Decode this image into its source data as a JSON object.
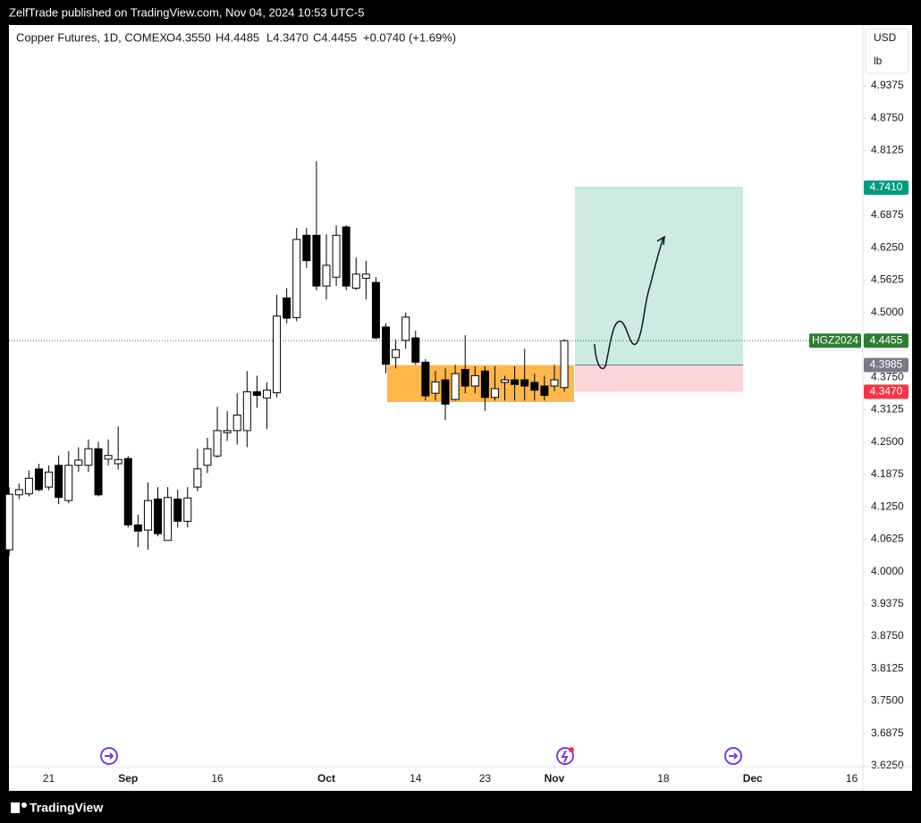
{
  "header": {
    "published": "ZelfTrade published on TradingView.com, Nov 04, 2024 10:53 UTC-5",
    "brand": "TradingView"
  },
  "chart_data": {
    "type": "candlestick",
    "title": "Copper Futures, 1D, COMEX",
    "legend": [
      "O4.3550",
      "H4.4485",
      "L4.3470",
      "C4.4455",
      "+0.0740 (+1.69%)"
    ],
    "currency": "USD",
    "unit": "lb",
    "x": [
      0,
      1,
      2,
      3,
      4,
      5,
      6,
      7,
      8,
      9,
      10,
      11,
      12,
      13,
      14,
      15,
      16,
      17,
      18,
      19,
      20,
      21,
      22,
      23,
      24,
      25,
      26,
      27,
      28,
      29,
      30,
      31,
      32,
      33,
      34,
      35,
      36,
      37,
      38,
      39,
      40,
      41,
      42,
      43,
      44,
      45,
      46,
      47,
      48,
      49,
      50,
      51,
      52,
      53,
      54,
      55,
      56
    ],
    "open": [
      4.042,
      4.148,
      4.15,
      4.198,
      4.163,
      4.205,
      4.137,
      4.205,
      4.205,
      4.237,
      4.217,
      4.208,
      4.218,
      4.09,
      4.08,
      4.14,
      4.06,
      4.14,
      4.097,
      4.163,
      4.205,
      4.223,
      4.268,
      4.272,
      4.272,
      4.347,
      4.335,
      4.345,
      4.528,
      4.49,
      4.649,
      4.649,
      4.551,
      4.568,
      4.665,
      4.547,
      4.566,
      4.558,
      4.472,
      4.413,
      4.446,
      4.451,
      4.404,
      4.344,
      4.37,
      4.332,
      4.39,
      4.358,
      4.387,
      4.336,
      4.365,
      4.37,
      4.37,
      4.365,
      4.358,
      4.358,
      4.355
    ],
    "high": [
      4.163,
      4.17,
      4.195,
      4.208,
      4.205,
      4.224,
      4.232,
      4.24,
      4.255,
      4.25,
      4.255,
      4.28,
      4.223,
      4.11,
      4.172,
      4.163,
      4.163,
      4.158,
      4.163,
      4.237,
      4.258,
      4.318,
      4.31,
      4.344,
      4.387,
      4.378,
      4.365,
      4.534,
      4.547,
      4.663,
      4.663,
      4.792,
      4.651,
      4.668,
      4.668,
      4.606,
      4.6,
      4.568,
      4.479,
      4.448,
      4.5,
      4.465,
      4.41,
      4.387,
      4.392,
      4.399,
      4.456,
      4.396,
      4.396,
      4.396,
      4.378,
      4.396,
      4.43,
      4.382,
      4.378,
      4.399,
      4.4485
    ],
    "low": [
      4.03,
      4.14,
      4.145,
      4.155,
      4.157,
      4.13,
      4.132,
      4.192,
      4.192,
      4.145,
      4.205,
      4.197,
      4.085,
      4.047,
      4.042,
      4.068,
      4.06,
      4.085,
      4.085,
      4.155,
      4.19,
      4.22,
      4.252,
      4.245,
      4.24,
      4.316,
      4.275,
      4.336,
      4.479,
      4.483,
      4.586,
      4.543,
      4.525,
      4.551,
      4.543,
      4.543,
      4.525,
      4.448,
      4.383,
      4.392,
      4.43,
      4.399,
      4.33,
      4.33,
      4.292,
      4.33,
      4.344,
      4.344,
      4.31,
      4.33,
      4.33,
      4.33,
      4.33,
      4.33,
      4.33,
      4.348,
      4.347
    ],
    "close": [
      4.149,
      4.158,
      4.18,
      4.158,
      4.192,
      4.143,
      4.205,
      4.215,
      4.237,
      4.148,
      4.224,
      4.216,
      4.09,
      4.078,
      4.137,
      4.073,
      4.143,
      4.097,
      4.142,
      4.198,
      4.237,
      4.272,
      4.272,
      4.302,
      4.347,
      4.34,
      4.35,
      4.493,
      4.489,
      4.641,
      4.6,
      4.551,
      4.591,
      4.649,
      4.551,
      4.574,
      4.574,
      4.451,
      4.4,
      4.428,
      4.491,
      4.404,
      4.339,
      4.366,
      4.323,
      4.382,
      4.358,
      4.378,
      4.336,
      4.353,
      4.37,
      4.361,
      4.358,
      4.35,
      4.34,
      4.37,
      4.4455
    ],
    "up_color": "#ffffff",
    "down_color": "#000000",
    "wick_color": "#000000",
    "xlim": [
      -0.02,
      86.12
    ],
    "xticks": [
      {
        "value": 4,
        "label": "21"
      },
      {
        "value": 12,
        "label": "Sep"
      },
      {
        "value": 21,
        "label": "16"
      },
      {
        "value": 32,
        "label": "Oct"
      },
      {
        "value": 41,
        "label": "14"
      },
      {
        "value": 48,
        "label": "23"
      },
      {
        "value": 55,
        "label": "Nov"
      },
      {
        "value": 66,
        "label": "18"
      },
      {
        "value": 75,
        "label": "Dec"
      },
      {
        "value": 85,
        "label": "16"
      }
    ],
    "ylim": [
      3.6233,
      5.0548
    ],
    "yticks": [
      4.9375,
      {
        "value": 4.875,
        "label": "4.8750"
      },
      4.8125,
      4.6875,
      {
        "value": 4.625,
        "label": "4.6250"
      },
      4.5625,
      {
        "value": 4.5,
        "label": "4.5000"
      },
      {
        "value": 4.375,
        "label": "4.3750"
      },
      4.3125,
      {
        "value": 4.25,
        "label": "4.2500"
      },
      4.1875,
      {
        "value": 4.125,
        "label": "4.1250"
      },
      4.0625,
      {
        "value": 4.0,
        "label": "4.0000"
      },
      3.9375,
      {
        "value": 3.875,
        "label": "3.8750"
      },
      3.8125,
      {
        "value": 3.75,
        "label": "3.7500"
      },
      3.6875,
      {
        "value": 3.625,
        "label": "3.6250"
      }
    ],
    "grid": false,
    "support_zone": {
      "x": [
        38.13,
        56.98
      ],
      "y": [
        4.327,
        4.3985
      ],
      "color": "#ffb74d"
    },
    "position": {
      "x": [
        57.07,
        74.03
      ],
      "entry": 4.3985,
      "target": 4.741,
      "stop": 4.347,
      "target_color": "#cdebe3",
      "stop_color": "#fad6da"
    },
    "price_labels": [
      {
        "value": 4.741,
        "label": "4.7410",
        "color": "#089981"
      },
      {
        "value": 4.3985,
        "label": "4.3985",
        "color": "#787b86"
      },
      {
        "value": 4.347,
        "label": "4.3470",
        "color": "#f23645"
      }
    ],
    "last_price": {
      "symbol": "HGZ2024",
      "value": 4.4455,
      "label": "4.4455",
      "color": "#2e7d32"
    }
  }
}
